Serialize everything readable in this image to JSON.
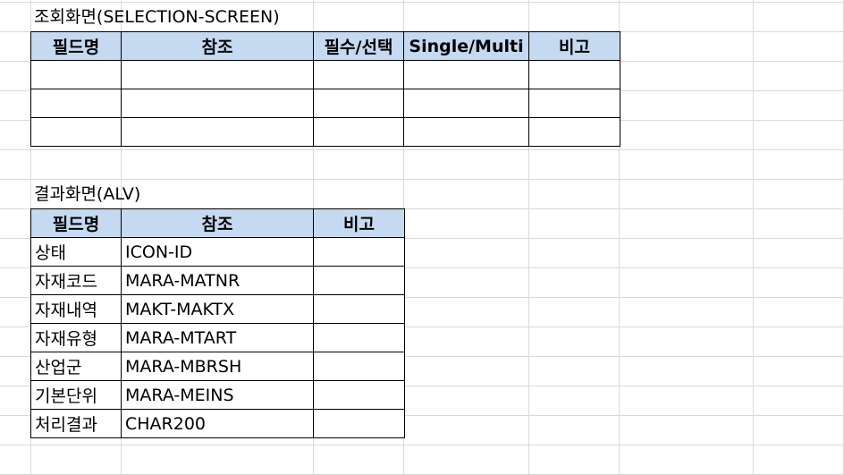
{
  "selection_screen": {
    "title": "조회화면(SELECTION-SCREEN)",
    "headers": [
      "필드명",
      "참조",
      "필수/선택",
      "Single/Multi",
      "비고"
    ],
    "rows": [
      [
        "",
        "",
        "",
        "",
        ""
      ],
      [
        "",
        "",
        "",
        "",
        ""
      ],
      [
        "",
        "",
        "",
        "",
        ""
      ]
    ]
  },
  "alv_screen": {
    "title": "결과화면(ALV)",
    "headers": [
      "필드명",
      "참조",
      "비고"
    ],
    "rows": [
      [
        "상태",
        "ICON-ID",
        ""
      ],
      [
        "자재코드",
        "MARA-MATNR",
        ""
      ],
      [
        "자재내역",
        "MAKT-MAKTX",
        ""
      ],
      [
        "자재유형",
        "MARA-MTART",
        ""
      ],
      [
        "산업군",
        "MARA-MBRSH",
        ""
      ],
      [
        "기본단위",
        "MARA-MEINS",
        ""
      ],
      [
        "처리결과",
        "CHAR200",
        ""
      ]
    ]
  },
  "colors": {
    "header_fill": "#c5d9f1",
    "gridline": "#d9d9d9"
  }
}
